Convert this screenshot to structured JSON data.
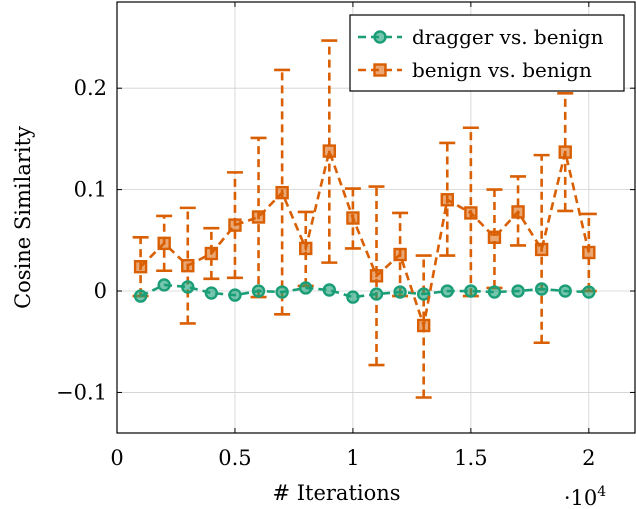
{
  "chart_data": {
    "type": "line",
    "xlabel": "# Iterations",
    "ylabel": "Cosine Similarity",
    "x_multiplier_label": "·10",
    "x_multiplier_exp": "4",
    "xlim": [
      0.0,
      2.2
    ],
    "ylim": [
      -0.14,
      0.285
    ],
    "xticks": [
      0,
      0.5,
      1,
      1.5,
      2
    ],
    "xtick_labels": [
      "0",
      "0.5",
      "1",
      "1.5",
      "2"
    ],
    "yticks": [
      -0.1,
      0,
      0.1,
      0.2
    ],
    "ytick_labels": [
      "−0.1",
      "0",
      "0.1",
      "0.2"
    ],
    "grid": true,
    "legend_position": "top-right",
    "x": [
      0.1,
      0.2,
      0.3,
      0.4,
      0.5,
      0.6,
      0.7,
      0.8,
      0.9,
      1.0,
      1.1,
      1.2,
      1.3,
      1.4,
      1.5,
      1.6,
      1.7,
      1.8,
      1.9,
      2.0
    ],
    "series": [
      {
        "name": "dragger vs. benign",
        "color": "#1b9e77",
        "marker": "circle",
        "values": [
          -0.005,
          0.006,
          0.004,
          -0.002,
          -0.004,
          0.0,
          -0.001,
          0.003,
          0.001,
          -0.006,
          -0.003,
          -0.001,
          -0.003,
          0.0,
          0.0,
          -0.001,
          0.0,
          0.002,
          0.0,
          -0.001
        ]
      },
      {
        "name": "benign vs. benign",
        "color": "#d95f02",
        "marker": "square",
        "values": [
          0.024,
          0.047,
          0.025,
          0.037,
          0.065,
          0.073,
          0.097,
          0.042,
          0.138,
          0.072,
          0.015,
          0.036,
          -0.034,
          0.09,
          0.077,
          0.053,
          0.078,
          0.041,
          0.137,
          0.038
        ],
        "error_low": [
          -0.005,
          0.02,
          -0.032,
          0.012,
          0.013,
          -0.006,
          -0.023,
          0.005,
          0.028,
          0.042,
          -0.073,
          -0.005,
          -0.105,
          0.035,
          -0.005,
          0.003,
          0.045,
          -0.051,
          0.079,
          0.0
        ],
        "error_high": [
          0.053,
          0.074,
          0.082,
          0.062,
          0.117,
          0.151,
          0.218,
          0.078,
          0.247,
          0.101,
          0.103,
          0.077,
          0.035,
          0.146,
          0.161,
          0.1,
          0.113,
          0.134,
          0.195,
          0.076
        ]
      }
    ]
  }
}
